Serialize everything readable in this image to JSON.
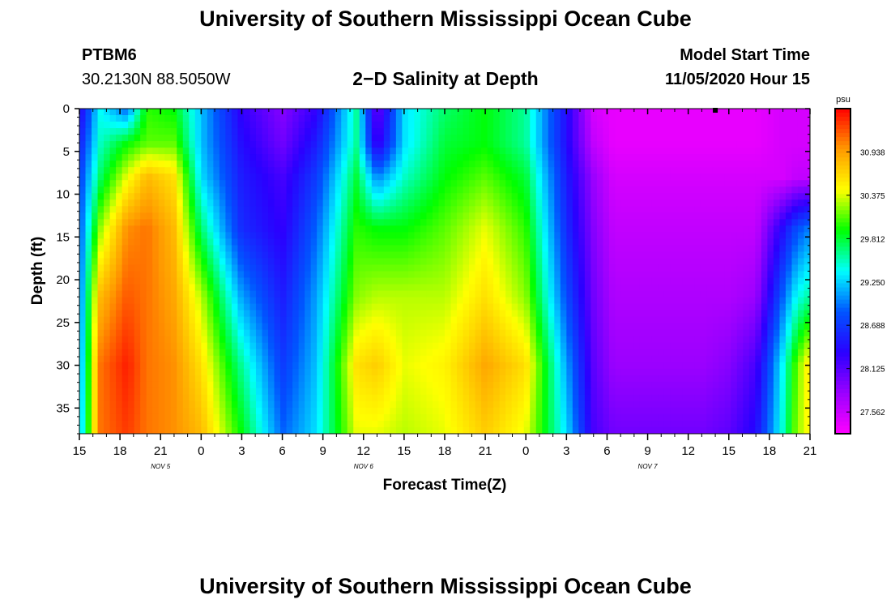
{
  "page": {
    "title": "University of Southern Mississippi Ocean Cube",
    "footer_title": "University of Southern Mississippi Ocean Cube",
    "station_id": "PTBM6",
    "station_coords": "30.2130N 88.5050W",
    "model_start_label": "Model Start Time",
    "model_start_value": "11/05/2020 Hour 15"
  },
  "chart_data": {
    "type": "heatmap",
    "title": "2−D Salinity at Depth",
    "xlabel": "Forecast Time(Z)",
    "ylabel": "Depth (ft)",
    "x_ticks": [
      "15",
      "18",
      "21",
      "0",
      "3",
      "6",
      "9",
      "12",
      "15",
      "18",
      "21",
      "0",
      "3",
      "6",
      "9",
      "12",
      "15",
      "18",
      "21"
    ],
    "x_range_hours": [
      0,
      54
    ],
    "date_labels": [
      {
        "label": "NOV 5",
        "at_tick": 2
      },
      {
        "label": "NOV 6",
        "at_tick": 7
      },
      {
        "label": "NOV 7",
        "at_tick": 14
      }
    ],
    "y_ticks": [
      0,
      5,
      10,
      15,
      20,
      25,
      30,
      35
    ],
    "ylim": [
      0,
      38
    ],
    "y_inverted": true,
    "colorbar": {
      "unit": "psu",
      "tick_labels": [
        "30.938",
        "30.375",
        "29.812",
        "29.250",
        "28.688",
        "28.125",
        "27.562"
      ],
      "range": [
        27.28,
        31.5
      ],
      "colors": [
        "#ff00ff",
        "#9a00ff",
        "#2a00ff",
        "#0055ff",
        "#00ffff",
        "#00ff00",
        "#ffff00",
        "#ff9900",
        "#ff0000"
      ]
    },
    "salinity_psu": {
      "hours": [
        0,
        1.5,
        3.5,
        5,
        7,
        9,
        12,
        15,
        17.5,
        20.5,
        22,
        24,
        27,
        30,
        33,
        36,
        38,
        39.5,
        40.5,
        43,
        46,
        48,
        50,
        52,
        53,
        54
      ],
      "depths": [
        0,
        4,
        8,
        14,
        22,
        30,
        38
      ],
      "values": [
        [
          28.3,
          29.4,
          28.9,
          30.0,
          29.9,
          29.2,
          28.3,
          27.9,
          28.3,
          29.6,
          28.0,
          29.3,
          29.7,
          29.9,
          29.6,
          28.4,
          27.5,
          27.4,
          27.4,
          27.4,
          27.4,
          27.4,
          27.4,
          27.5,
          27.5,
          27.5
        ],
        [
          28.5,
          29.5,
          29.9,
          30.1,
          30.1,
          29.2,
          28.4,
          28.0,
          28.5,
          29.6,
          28.2,
          29.3,
          29.8,
          29.9,
          29.6,
          28.4,
          27.6,
          27.4,
          27.4,
          27.4,
          27.4,
          27.4,
          27.4,
          27.5,
          27.5,
          27.5
        ],
        [
          28.7,
          29.7,
          30.4,
          30.8,
          30.6,
          29.3,
          28.5,
          28.2,
          28.7,
          29.8,
          29.0,
          29.5,
          29.9,
          30.1,
          29.8,
          28.5,
          27.8,
          27.5,
          27.5,
          27.5,
          27.5,
          27.5,
          27.5,
          27.5,
          27.6,
          27.6
        ],
        [
          28.8,
          30.2,
          31.0,
          31.1,
          30.8,
          29.7,
          28.6,
          28.3,
          28.9,
          30.0,
          29.9,
          29.9,
          30.1,
          30.4,
          30.0,
          28.6,
          27.9,
          27.6,
          27.6,
          27.6,
          27.6,
          27.6,
          27.6,
          28.4,
          28.8,
          29.0
        ],
        [
          28.9,
          30.8,
          31.2,
          31.1,
          30.9,
          30.3,
          29.1,
          28.5,
          29.1,
          30.2,
          30.3,
          30.3,
          30.3,
          30.6,
          30.2,
          28.8,
          28.0,
          27.7,
          27.7,
          27.7,
          27.7,
          27.7,
          27.8,
          28.9,
          29.4,
          29.6
        ],
        [
          29.0,
          31.1,
          31.4,
          31.1,
          31.0,
          30.6,
          29.6,
          28.7,
          29.2,
          30.6,
          30.7,
          30.4,
          30.5,
          30.9,
          30.6,
          29.1,
          28.1,
          27.8,
          27.8,
          27.8,
          27.8,
          27.9,
          28.2,
          29.4,
          30.1,
          30.6
        ],
        [
          29.1,
          31.1,
          31.3,
          31.1,
          31.0,
          30.8,
          29.9,
          28.9,
          29.3,
          30.4,
          30.4,
          30.3,
          30.4,
          30.7,
          30.4,
          29.3,
          28.2,
          28.0,
          28.0,
          28.0,
          28.0,
          28.1,
          28.4,
          29.5,
          30.2,
          30.5
        ]
      ]
    },
    "surface_marker_hour": 47
  }
}
